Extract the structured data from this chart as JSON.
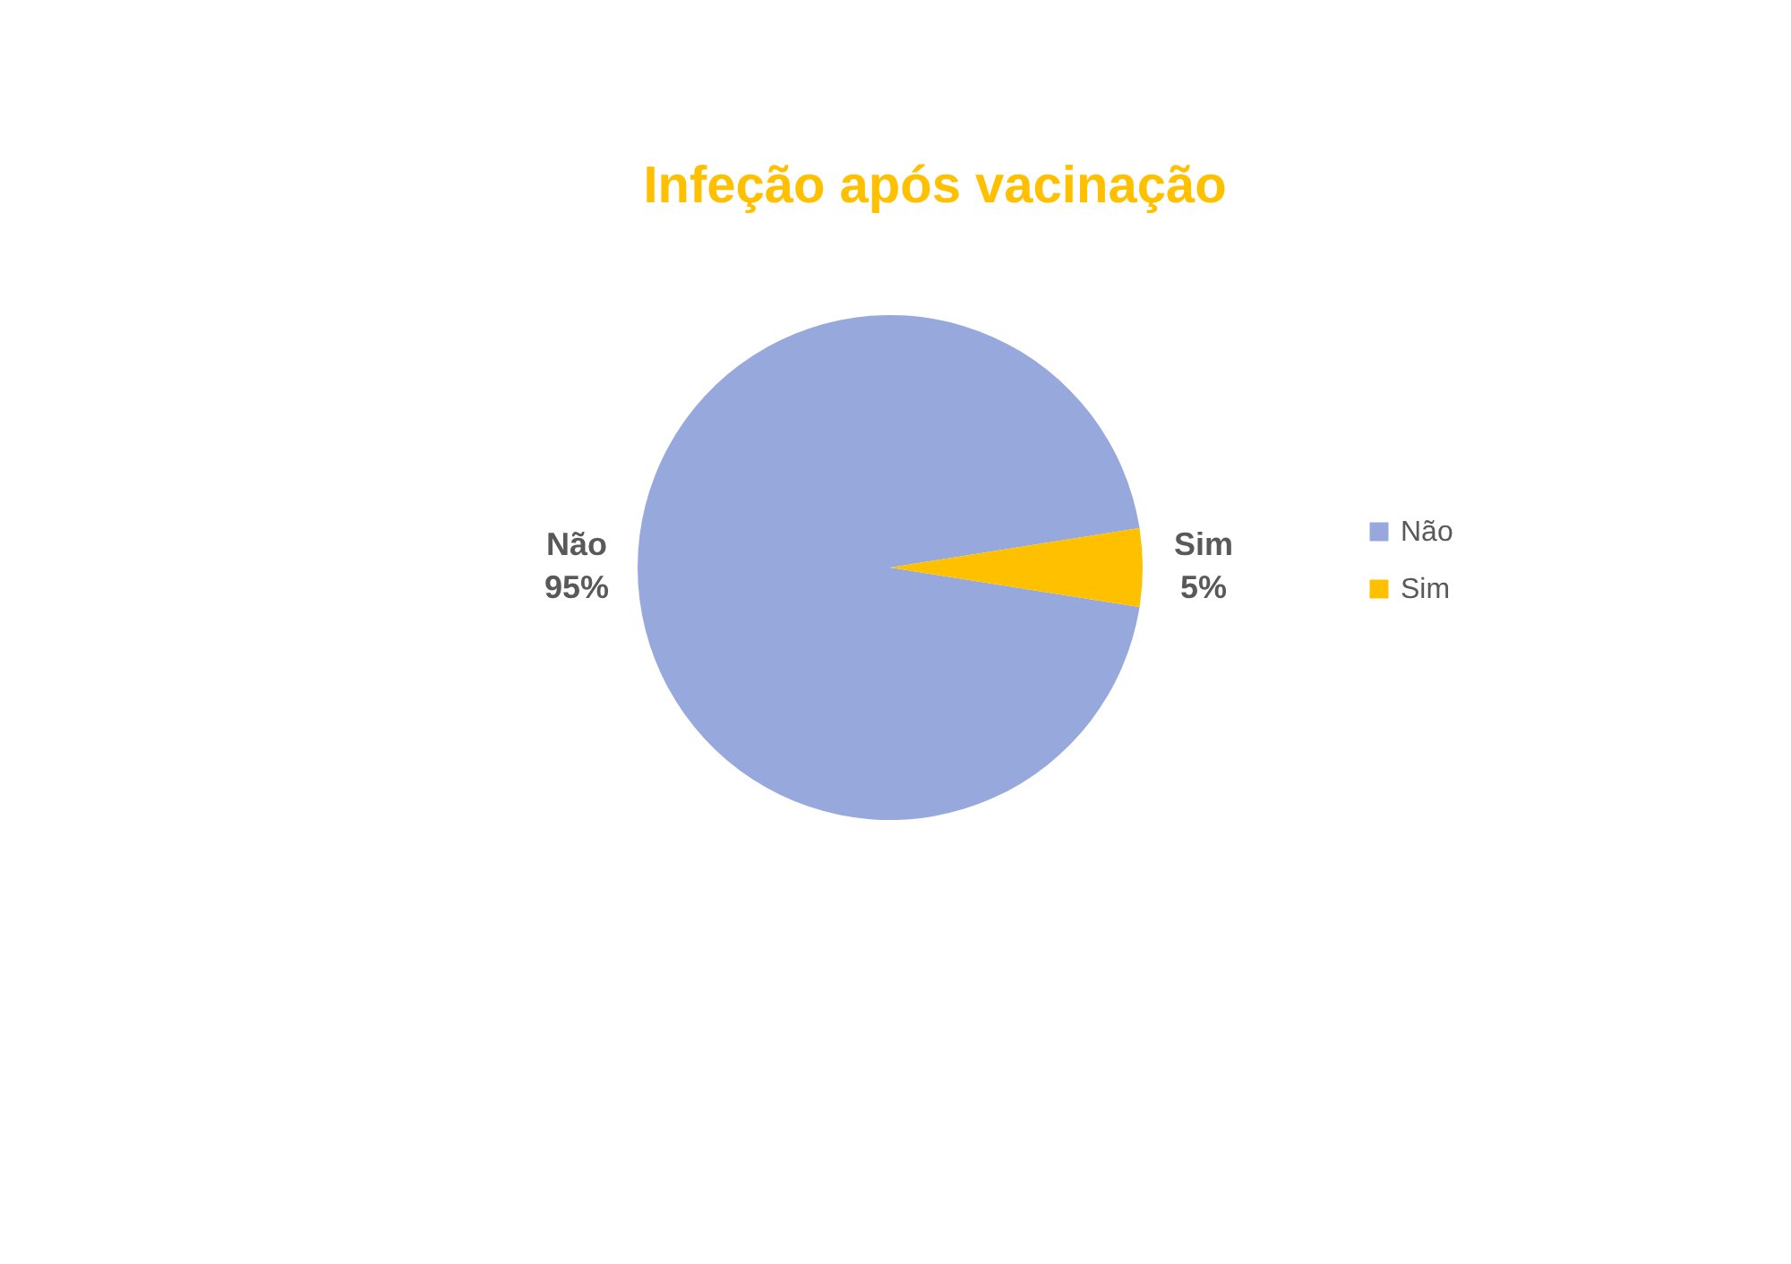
{
  "chart_data": {
    "type": "pie",
    "title": "Infeção após vacinação",
    "categories": [
      "Não",
      "Sim"
    ],
    "values": [
      95,
      5
    ],
    "colors": [
      "#97a9dc",
      "#ffc000"
    ],
    "value_labels": [
      "95%",
      "5%"
    ],
    "legend": "right"
  }
}
